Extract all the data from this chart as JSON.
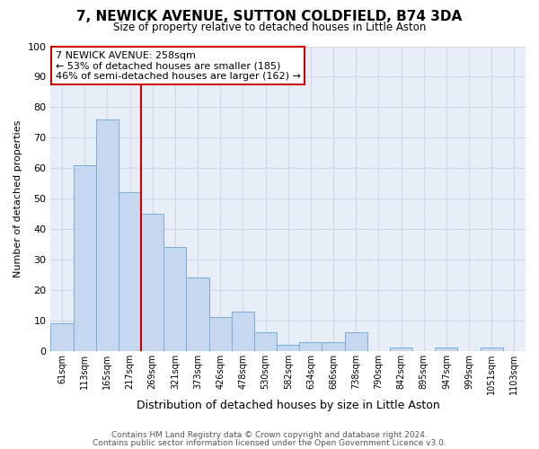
{
  "title": "7, NEWICK AVENUE, SUTTON COLDFIELD, B74 3DA",
  "subtitle": "Size of property relative to detached houses in Little Aston",
  "xlabel": "Distribution of detached houses by size in Little Aston",
  "ylabel": "Number of detached properties",
  "categories": [
    "61sqm",
    "113sqm",
    "165sqm",
    "217sqm",
    "269sqm",
    "321sqm",
    "373sqm",
    "426sqm",
    "478sqm",
    "530sqm",
    "582sqm",
    "634sqm",
    "686sqm",
    "738sqm",
    "790sqm",
    "842sqm",
    "895sqm",
    "947sqm",
    "999sqm",
    "1051sqm",
    "1103sqm"
  ],
  "values": [
    9,
    61,
    76,
    52,
    45,
    34,
    24,
    11,
    13,
    6,
    2,
    3,
    3,
    6,
    0,
    1,
    0,
    1,
    0,
    1,
    0
  ],
  "bar_color": "#c5d8f0",
  "bar_edge_color": "#7aaed6",
  "vline_index": 3.5,
  "vline_color": "#cc0000",
  "annotation_line1": "7 NEWICK AVENUE: 258sqm",
  "annotation_line2": "← 53% of detached houses are smaller (185)",
  "annotation_line3": "46% of semi-detached houses are larger (162) →",
  "annotation_box_color": "#ffffff",
  "annotation_box_edge": "#cc0000",
  "ylim": [
    0,
    100
  ],
  "yticks": [
    0,
    10,
    20,
    30,
    40,
    50,
    60,
    70,
    80,
    90,
    100
  ],
  "grid_color": "#d0d8e8",
  "bg_color": "#e8eef8",
  "footer1": "Contains HM Land Registry data © Crown copyright and database right 2024.",
  "footer2": "Contains public sector information licensed under the Open Government Licence v3.0."
}
